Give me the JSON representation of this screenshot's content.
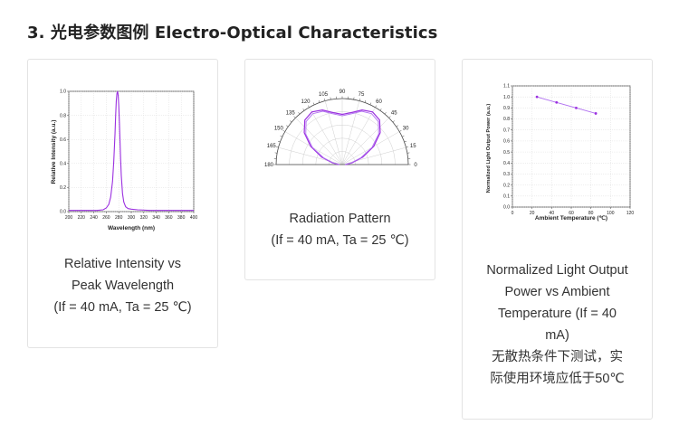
{
  "page": {
    "title": "3. 光电参数图例 Electro-Optical Characteristics"
  },
  "cards": [
    {
      "caption_lines": [
        "Relative Intensity vs",
        "Peak Wavelength",
        "(If = 40 mA, Ta = 25 ℃)"
      ]
    },
    {
      "caption_lines": [
        "Radiation Pattern",
        "(If = 40 mA, Ta = 25 ℃)"
      ]
    },
    {
      "caption_lines": [
        "Normalized Light Output",
        "Power vs Ambient",
        "Temperature (If = 40",
        "mA)",
        "无散热条件下测试，实",
        "际使用环境应低于50℃"
      ]
    }
  ],
  "chart_data": [
    {
      "type": "line",
      "xlabel": "Wavelength (nm)",
      "ylabel": "Relative Intensity (a.u.)",
      "xlim": [
        200,
        400
      ],
      "ylim": [
        0,
        1.0
      ],
      "x_ticks": [
        200,
        220,
        240,
        260,
        280,
        300,
        320,
        340,
        360,
        380,
        400
      ],
      "y_ticks": [
        0.0,
        0.2,
        0.4,
        0.6,
        0.8,
        1.0
      ],
      "grid": true,
      "series": [
        {
          "color": "#9b30e0",
          "x": [
            200,
            230,
            245,
            255,
            260,
            264,
            267,
            270,
            272,
            274,
            275,
            276,
            277,
            278,
            279,
            280,
            281,
            282,
            283,
            284,
            286,
            288,
            291,
            295,
            300,
            310,
            330,
            360,
            400
          ],
          "y": [
            0.01,
            0.01,
            0.01,
            0.015,
            0.03,
            0.06,
            0.12,
            0.25,
            0.42,
            0.65,
            0.8,
            0.92,
            0.98,
            1.0,
            0.97,
            0.88,
            0.74,
            0.58,
            0.43,
            0.3,
            0.15,
            0.08,
            0.04,
            0.025,
            0.02,
            0.015,
            0.01,
            0.01,
            0.01
          ]
        }
      ]
    },
    {
      "type": "polar",
      "angle_labels": [
        "0",
        "15",
        "30",
        "45",
        "60",
        "75",
        "90",
        "105",
        "120",
        "135",
        "150",
        "165",
        "180"
      ],
      "rlim": [
        0,
        1.0
      ],
      "grid": true,
      "series": [
        {
          "color": "#9b30e0",
          "theta": [
            0,
            10,
            20,
            30,
            40,
            50,
            60,
            70,
            80,
            90,
            100,
            110,
            120,
            130,
            140,
            150,
            160,
            170,
            180
          ],
          "r": [
            0.05,
            0.15,
            0.33,
            0.55,
            0.75,
            0.88,
            0.92,
            0.88,
            0.8,
            0.76,
            0.8,
            0.88,
            0.92,
            0.88,
            0.75,
            0.55,
            0.33,
            0.15,
            0.05
          ]
        },
        {
          "color": "#b070f0",
          "theta": [
            0,
            10,
            20,
            30,
            40,
            50,
            60,
            70,
            80,
            90,
            100,
            110,
            120,
            130,
            140,
            150,
            160,
            170,
            180
          ],
          "r": [
            0.04,
            0.13,
            0.3,
            0.52,
            0.72,
            0.85,
            0.89,
            0.86,
            0.78,
            0.74,
            0.78,
            0.86,
            0.89,
            0.85,
            0.72,
            0.52,
            0.3,
            0.13,
            0.04
          ]
        }
      ]
    },
    {
      "type": "line",
      "xlabel": "Ambient Temperature (℃)",
      "ylabel": "Normalized Light Output Power (a.u.)",
      "xlim": [
        0,
        120
      ],
      "ylim": [
        0.0,
        1.1
      ],
      "x_ticks": [
        0,
        20,
        40,
        60,
        80,
        100,
        120
      ],
      "y_ticks": [
        0.0,
        0.1,
        0.2,
        0.3,
        0.4,
        0.5,
        0.6,
        0.7,
        0.8,
        0.9,
        1.0,
        1.1
      ],
      "grid": true,
      "series": [
        {
          "color": "#9b30e0",
          "x": [
            25,
            45,
            65,
            85
          ],
          "y": [
            1.0,
            0.95,
            0.9,
            0.85
          ]
        }
      ]
    }
  ]
}
